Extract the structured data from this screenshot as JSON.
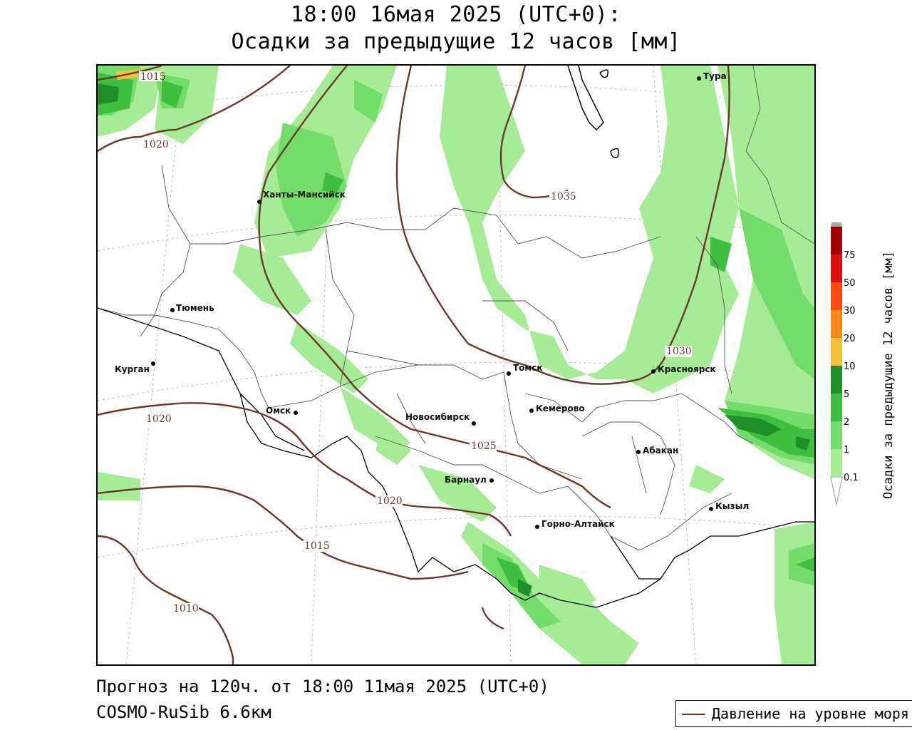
{
  "header": {
    "title_line1": "18:00 16мая 2025 (UTC+0):",
    "title_line2": "Осадки за предыдущие 12 часов [мм]"
  },
  "footer": {
    "forecast": "Прогноз на 120ч. от 18:00 11мая 2025 (UTC+0)",
    "model": "COSMO-RuSib 6.6км"
  },
  "legend": {
    "pressure_label": "Давление на уровне моря",
    "pressure_color": "#6b3a2a"
  },
  "colorbar": {
    "title": "Осадки за предыдущие 12 часов [мм]",
    "levels": [
      "0.1",
      "1",
      "2",
      "5",
      "10",
      "20",
      "30",
      "50",
      "75"
    ],
    "colors": [
      "#a6eb95",
      "#74dc6a",
      "#3fbf3f",
      "#1f8f2a",
      "#f5c13d",
      "#ff8a1a",
      "#ff4a10",
      "#d81010",
      "#9e0000",
      "#a6a6a6"
    ]
  },
  "cities": [
    {
      "name": "Тура"
    },
    {
      "name": "Ханты-Мансийск"
    },
    {
      "name": "Тюмень"
    },
    {
      "name": "Курган"
    },
    {
      "name": "Омск"
    },
    {
      "name": "Новосибирск"
    },
    {
      "name": "Томск"
    },
    {
      "name": "Кемерово"
    },
    {
      "name": "Красноярск"
    },
    {
      "name": "Абакан"
    },
    {
      "name": "Барнаул"
    },
    {
      "name": "Горно-Алтайск"
    },
    {
      "name": "Кызыл"
    }
  ],
  "isobars": [
    "1015",
    "1020",
    "1035",
    "1030",
    "1025",
    "1020",
    "1020",
    "1015",
    "1010"
  ]
}
